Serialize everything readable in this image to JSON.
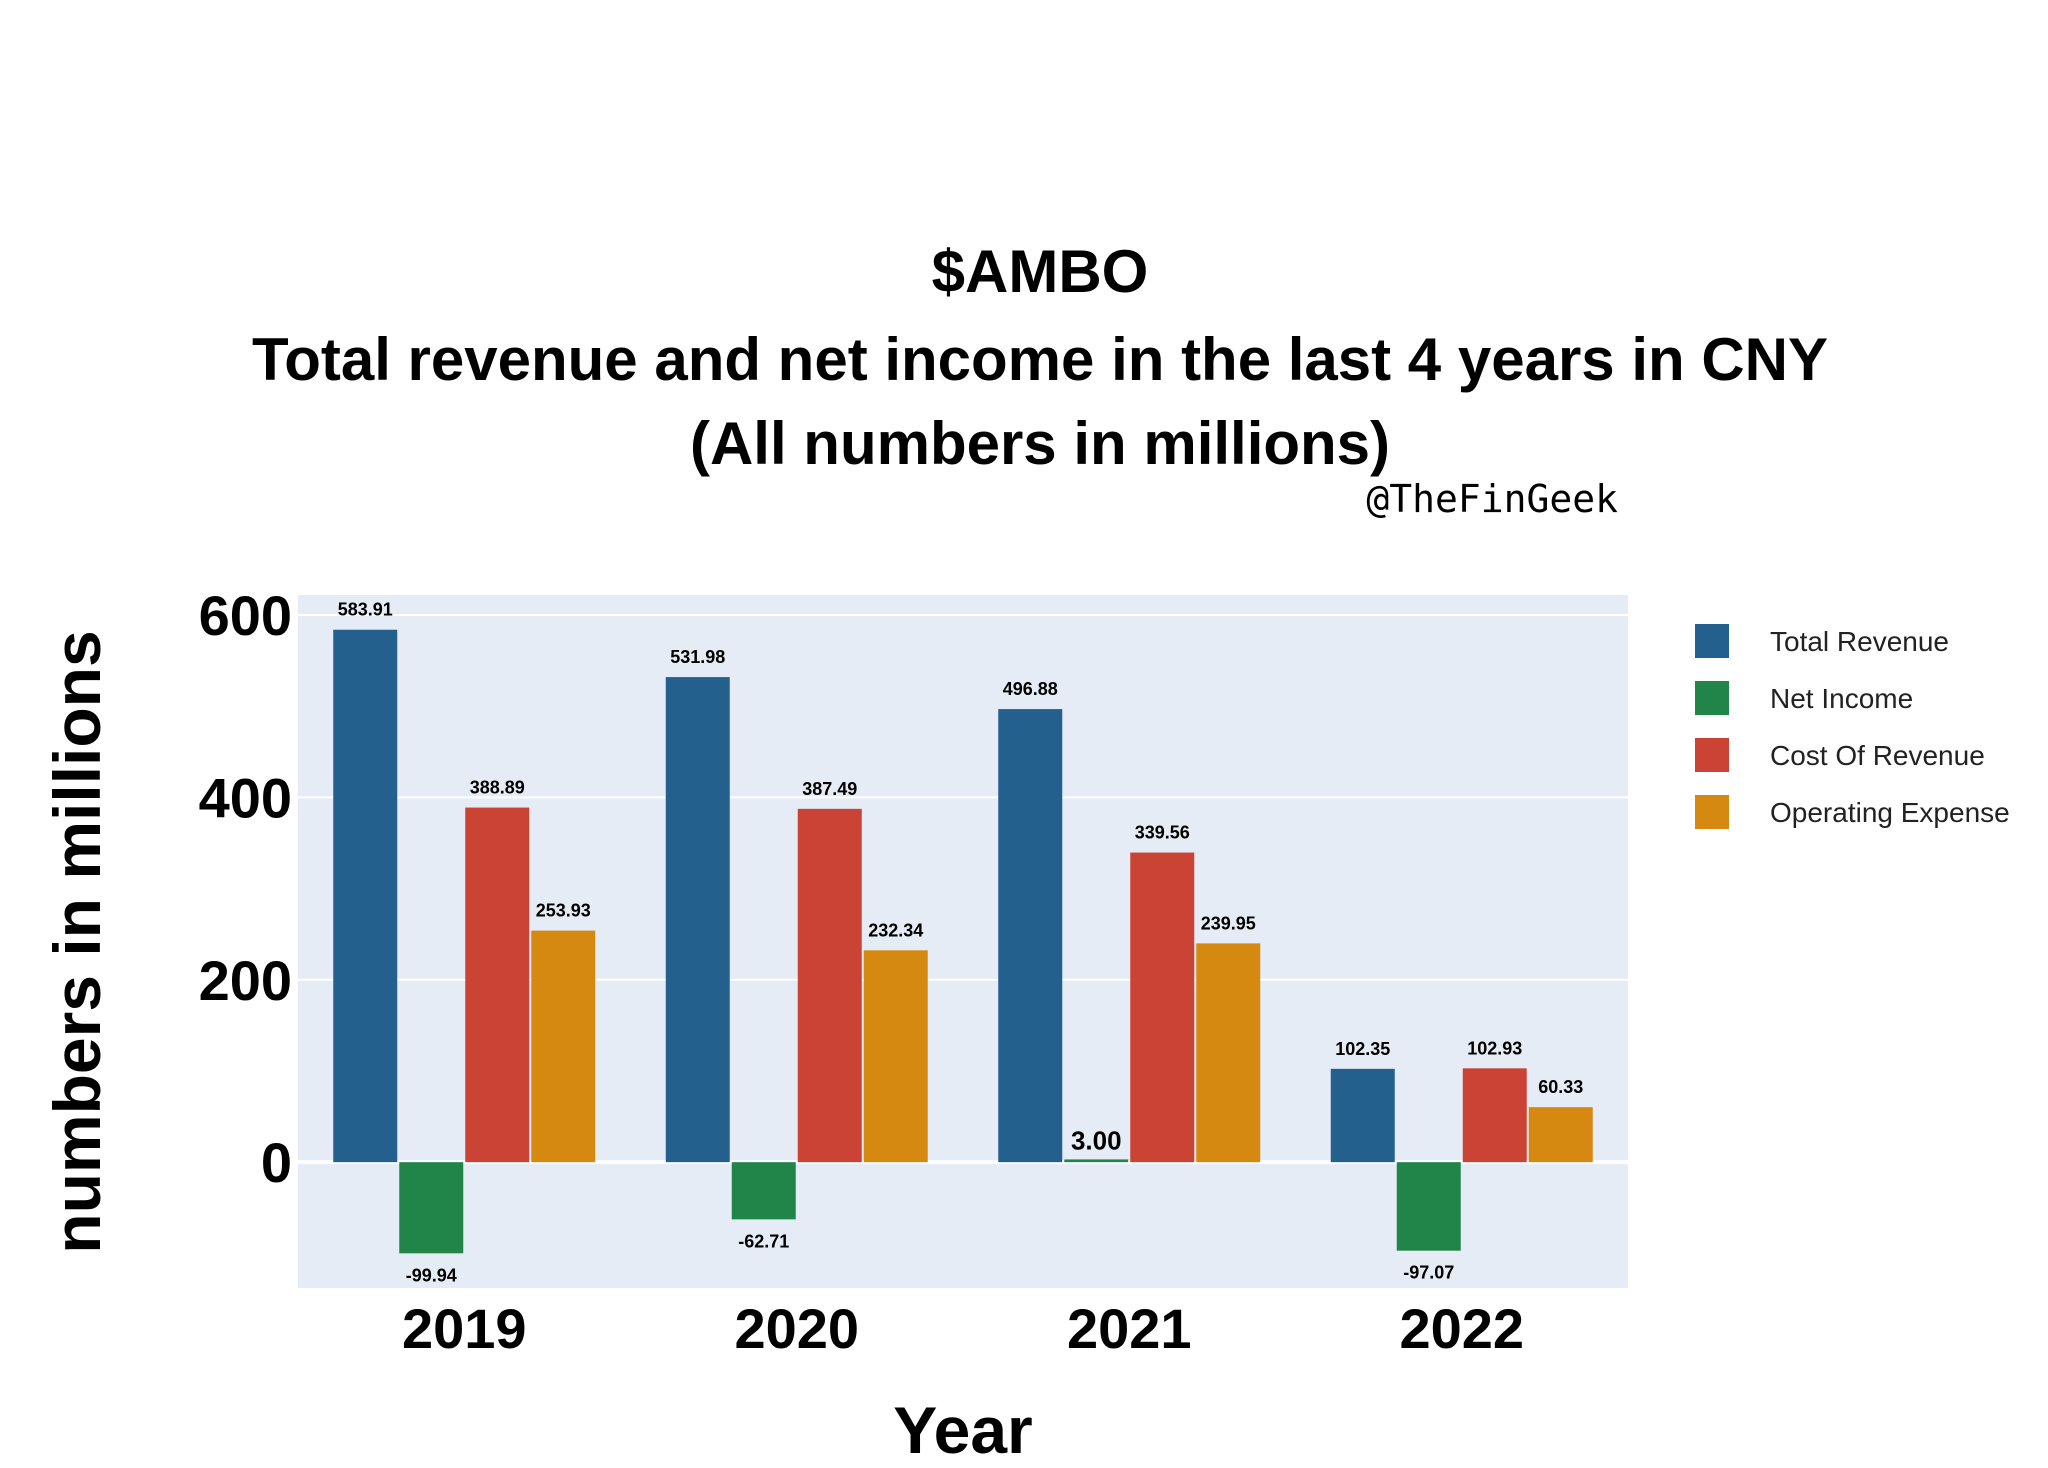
{
  "chart_data": {
    "type": "bar",
    "title_lines": [
      "$AMBO",
      "Total revenue and net income in the last 4 years in CNY",
      "(All numbers in millions)"
    ],
    "handle": "@TheFinGeek",
    "xlabel": "Year",
    "ylabel": "numbers in millions",
    "categories": [
      "2019",
      "2020",
      "2021",
      "2022"
    ],
    "ylim": [
      -138,
      622
    ],
    "yticks": [
      0,
      200,
      400,
      600
    ],
    "grid": true,
    "legend_position": "right",
    "series": [
      {
        "name": "Total Revenue",
        "color": "#23608E",
        "values": [
          583.91,
          531.98,
          496.88,
          102.35
        ],
        "labels": [
          "583.91",
          "531.98",
          "496.88",
          "102.35"
        ]
      },
      {
        "name": "Net Income",
        "color": "#21854A",
        "values": [
          -99.94,
          -62.71,
          3.0,
          -97.07
        ],
        "labels": [
          "-99.94",
          "-62.71",
          "3.00",
          "-97.07"
        ]
      },
      {
        "name": "Cost Of Revenue",
        "color": "#CB4335",
        "values": [
          388.89,
          387.49,
          339.56,
          102.93
        ],
        "labels": [
          "388.89",
          "387.49",
          "339.56",
          "102.93"
        ]
      },
      {
        "name": "Operating Expense",
        "color": "#D68910",
        "values": [
          253.93,
          232.34,
          239.95,
          60.33
        ],
        "labels": [
          "253.93",
          "232.34",
          "239.95",
          "60.33"
        ]
      }
    ]
  },
  "colors": {
    "plot_background": "#E5ECF6",
    "grid": "#FFFFFF"
  }
}
